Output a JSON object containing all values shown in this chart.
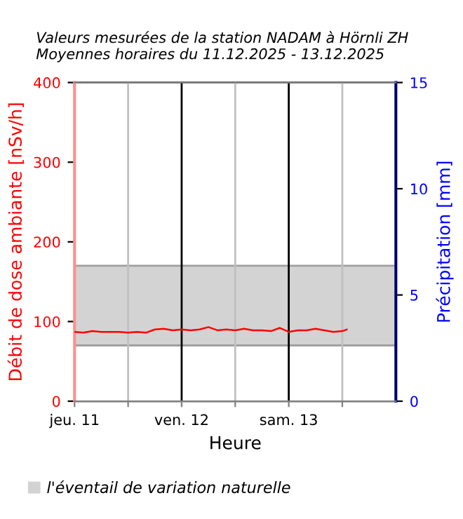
{
  "chart_data": {
    "type": "line",
    "title": "Valeurs mesurées de la station NADAM à Hörnli ZH\nMoyennes horaires du 11.12.2025 - 13.12.2025",
    "xlabel": "Heure",
    "ylabel": "Débit de dose ambiante [nSv/h]",
    "y2label": "Précipitation [mm]",
    "x": [
      "2025-12-11T00:00",
      "2025-12-11T02:00",
      "2025-12-11T04:00",
      "2025-12-11T06:00",
      "2025-12-11T08:00",
      "2025-12-11T10:00",
      "2025-12-11T12:00",
      "2025-12-11T14:00",
      "2025-12-11T16:00",
      "2025-12-11T18:00",
      "2025-12-11T20:00",
      "2025-12-11T22:00",
      "2025-12-12T00:00",
      "2025-12-12T02:00",
      "2025-12-12T04:00",
      "2025-12-12T06:00",
      "2025-12-12T08:00",
      "2025-12-12T10:00",
      "2025-12-12T12:00",
      "2025-12-12T14:00",
      "2025-12-12T16:00",
      "2025-12-12T18:00",
      "2025-12-12T20:00",
      "2025-12-12T22:00",
      "2025-12-13T00:00",
      "2025-12-13T02:00",
      "2025-12-13T04:00",
      "2025-12-13T06:00",
      "2025-12-13T08:00",
      "2025-12-13T10:00",
      "2025-12-13T12:00",
      "2025-12-13T13:00"
    ],
    "series": [
      {
        "color": "#ff0000",
        "values": [
          87,
          86,
          88,
          87,
          87,
          87,
          86,
          87,
          86,
          90,
          91,
          89,
          90,
          89,
          90,
          93,
          89,
          90,
          89,
          91,
          89,
          89,
          88,
          92,
          87,
          89,
          89,
          91,
          89,
          87,
          88,
          90
        ]
      }
    ],
    "xlim": [
      "2025-12-11T00:00",
      "2025-12-14T00:00"
    ],
    "xticks": [
      {
        "value": "2025-12-11T00:00",
        "label": "jeu. 11"
      },
      {
        "value": "2025-12-11T12:00",
        "label": null
      },
      {
        "value": "2025-12-12T00:00",
        "label": "ven. 12"
      },
      {
        "value": "2025-12-12T12:00",
        "label": null
      },
      {
        "value": "2025-12-13T00:00",
        "label": "sam. 13"
      },
      {
        "value": "2025-12-13T12:00",
        "label": null
      }
    ],
    "ylim": [
      0,
      400
    ],
    "yticks": [
      0,
      100,
      200,
      300,
      400
    ],
    "y2lim": [
      0,
      15
    ],
    "y2ticks": [
      0,
      5,
      10,
      15
    ],
    "bands": [
      {
        "axis": "y",
        "from": 70,
        "to": 170,
        "label": "l'éventail de variation naturelle",
        "color": "#d3d3d3"
      }
    ],
    "grid": "x",
    "legend": "bottom",
    "marker": "none",
    "line_style": "solid"
  }
}
